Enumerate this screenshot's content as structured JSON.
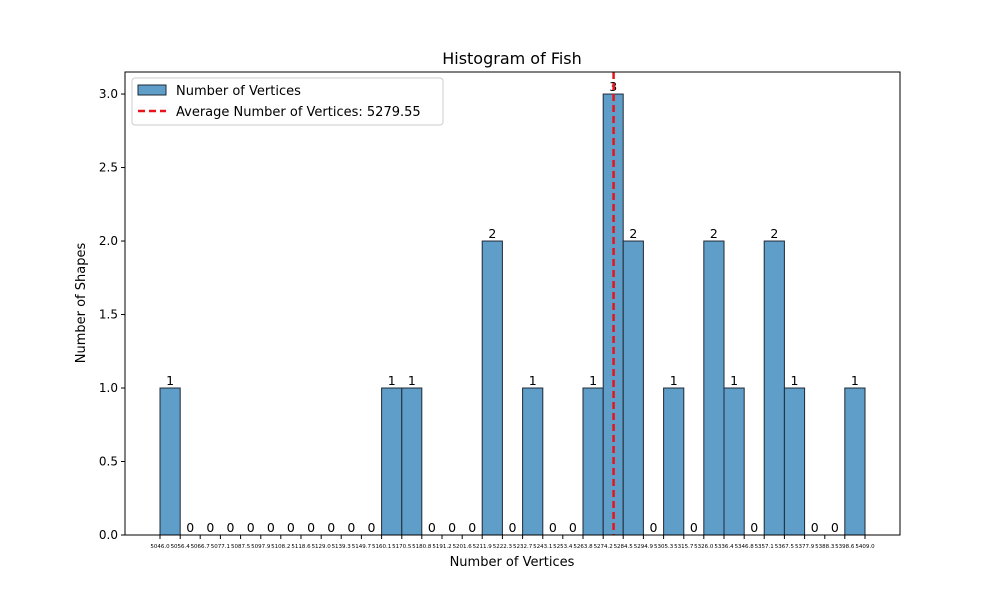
{
  "chart_data": {
    "type": "bar",
    "title": "Histogram of Fish",
    "xlabel": "Number of Vertices",
    "ylabel": "Number of Shapes",
    "ylim": [
      0,
      3.15
    ],
    "yticks": [
      "0.0",
      "0.5",
      "1.0",
      "1.5",
      "2.0",
      "2.5",
      "3.0"
    ],
    "ytick_values": [
      0,
      0.5,
      1.0,
      1.5,
      2.0,
      2.5,
      3.0
    ],
    "bin_edges": [
      5046.0,
      5056.4,
      5066.7,
      5077.1,
      5087.5,
      5097.9,
      5108.2,
      5118.6,
      5129.0,
      5139.3,
      5149.7,
      5160.1,
      5170.5,
      5180.8,
      5191.2,
      5201.6,
      5211.9,
      5222.3,
      5232.7,
      5243.1,
      5253.4,
      5263.8,
      5274.2,
      5284.5,
      5294.9,
      5305.3,
      5315.7,
      5326.0,
      5336.4,
      5346.8,
      5357.1,
      5367.5,
      5377.9,
      5388.3,
      5398.6,
      5409.0
    ],
    "xtick_labels": [
      "5046.0",
      "5056.4",
      "5066.7",
      "5077.1",
      "5087.5",
      "5097.9",
      "5108.2",
      "5118.6",
      "5129.0",
      "5139.3",
      "5149.7",
      "5160.1",
      "5170.5",
      "5180.8",
      "5191.2",
      "5201.6",
      "5211.9",
      "5222.3",
      "5232.7",
      "5243.1",
      "5253.4",
      "5263.8",
      "5274.2",
      "5284.5",
      "5294.9",
      "5305.3",
      "5315.7",
      "5326.0",
      "5336.4",
      "5346.8",
      "5357.1",
      "5367.5",
      "5377.9",
      "5388.3",
      "5398.6",
      "5409.0"
    ],
    "values": [
      1,
      0,
      0,
      0,
      0,
      0,
      0,
      0,
      0,
      0,
      0,
      1,
      1,
      0,
      0,
      0,
      2,
      0,
      1,
      0,
      0,
      1,
      3,
      2,
      0,
      1,
      0,
      2,
      1,
      0,
      2,
      1,
      0,
      0,
      1
    ],
    "bar_labels": [
      "1",
      "0",
      "0",
      "0",
      "0",
      "0",
      "0",
      "0",
      "0",
      "0",
      "0",
      "1",
      "1",
      "0",
      "0",
      "0",
      "2",
      "0",
      "1",
      "0",
      "0",
      "1",
      "3",
      "2",
      "0",
      "1",
      "0",
      "2",
      "1",
      "0",
      "2",
      "1",
      "0",
      "0",
      "1"
    ],
    "average": 5279.55,
    "legend": {
      "placement": "top-left",
      "bars_label": "Number of Vertices",
      "average_label": "Average Number of Vertices: 5279.55"
    },
    "colors": {
      "bar_fill": "#5f9ec9",
      "bar_edge": "#1f2a36",
      "average_line": "#e8141b",
      "axes": "#000000"
    },
    "grid": false
  }
}
